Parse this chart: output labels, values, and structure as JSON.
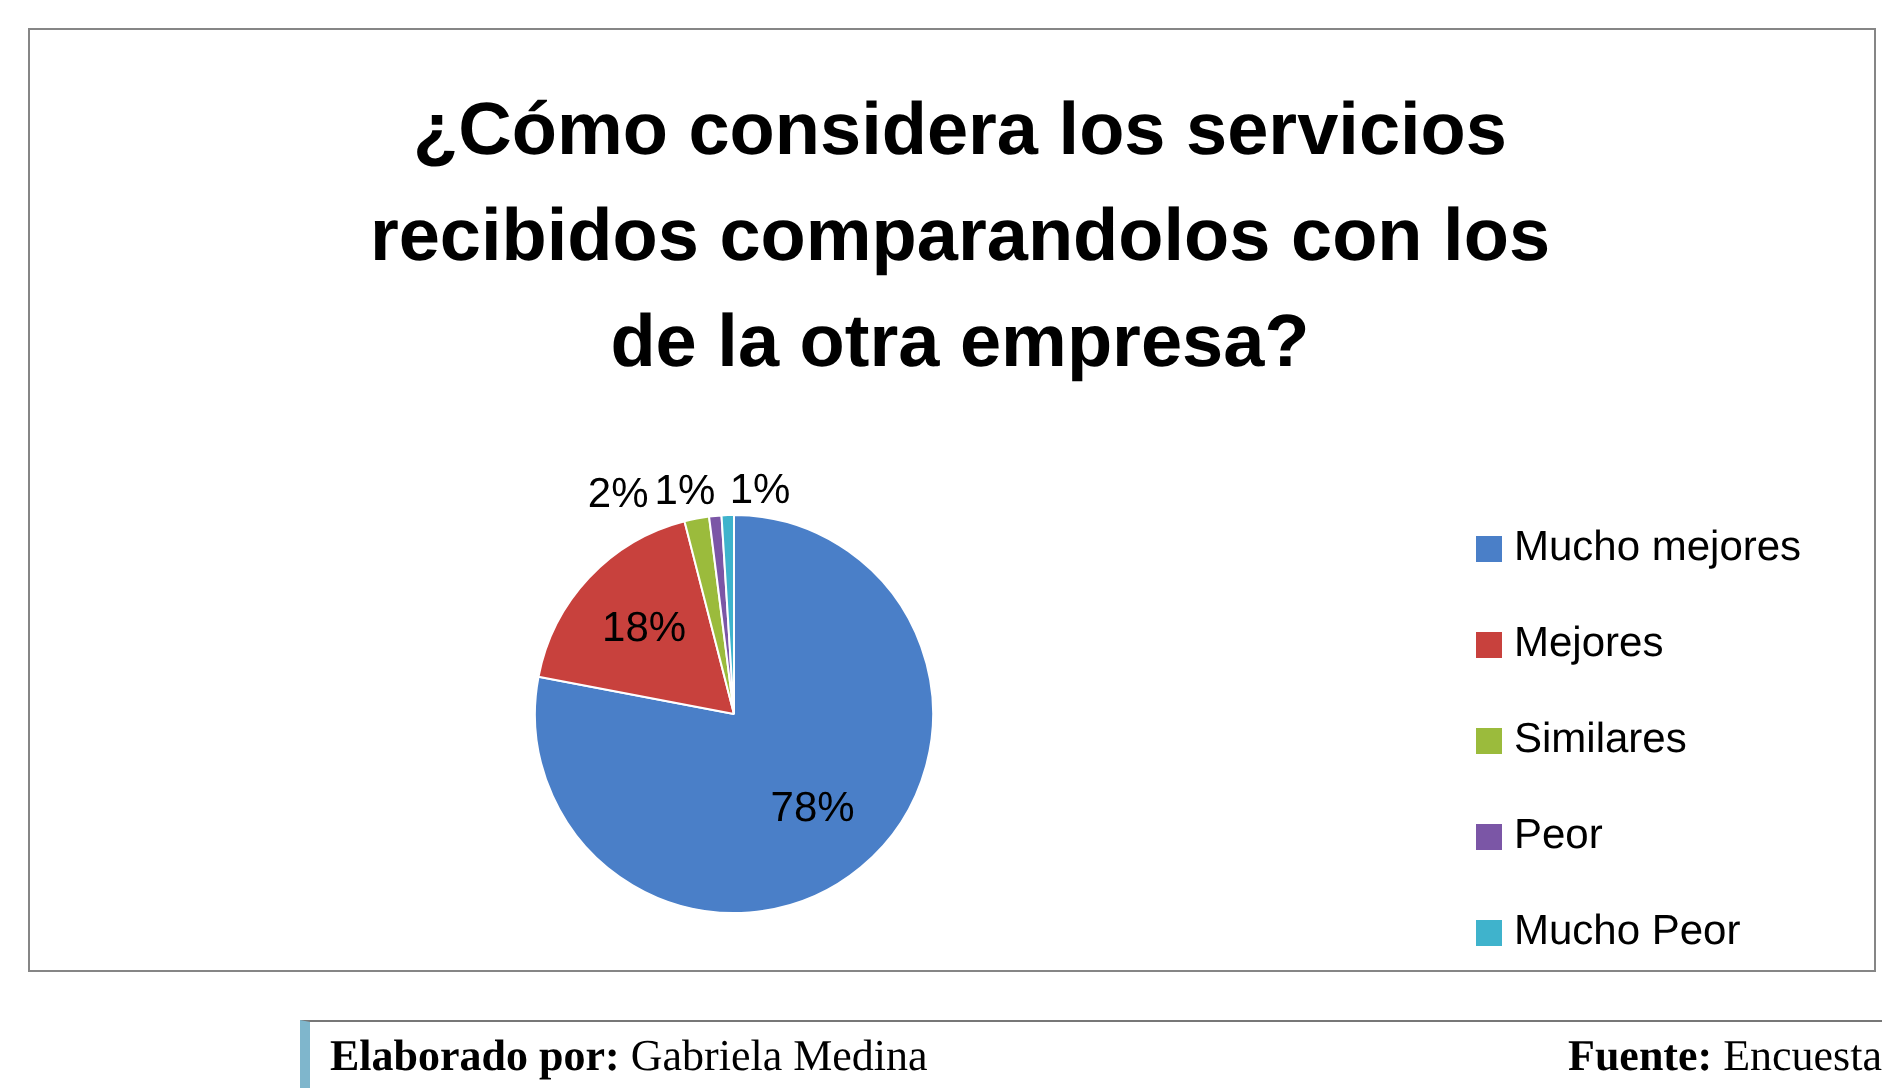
{
  "chart_data": {
    "type": "pie",
    "title": "¿Cómo considera los servicios recibidos comparandolos con los de la otra empresa?",
    "categories": [
      "Mucho mejores",
      "Mejores",
      "Similares",
      "Peor",
      "Mucho Peor"
    ],
    "values": [
      78,
      18,
      2,
      1,
      1
    ],
    "colors": [
      "#4a7fc8",
      "#c8413d",
      "#9bbb3c",
      "#7b56a6",
      "#3fb3cc"
    ],
    "value_labels": [
      "78%",
      "18%",
      "2%",
      "1%",
      "1%"
    ],
    "legend": "right",
    "annotations": [
      "Elaborado por: Gabriela Medina",
      "Fuente: Encuesta"
    ]
  }
}
